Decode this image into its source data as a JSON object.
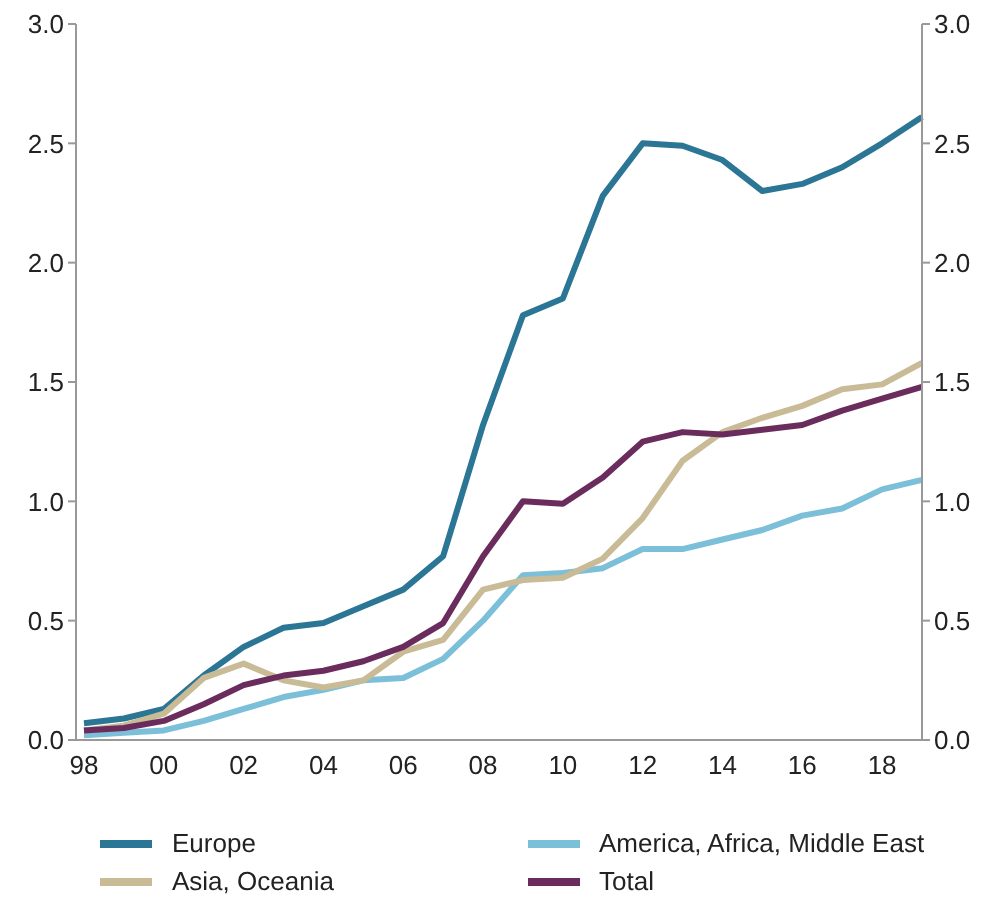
{
  "chart_data": {
    "type": "line",
    "categories": [
      "98",
      null,
      "00",
      null,
      "02",
      null,
      "04",
      null,
      "06",
      null,
      "08",
      null,
      "10",
      null,
      "12",
      null,
      "14",
      null,
      "16",
      null,
      "18",
      null
    ],
    "series": [
      {
        "name": "Europe",
        "color": "#2b7595",
        "values": [
          0.07,
          0.09,
          0.13,
          0.27,
          0.39,
          0.47,
          0.49,
          0.56,
          0.63,
          0.77,
          1.32,
          1.78,
          1.85,
          2.28,
          2.5,
          2.49,
          2.43,
          2.3,
          2.33,
          2.4,
          2.5,
          2.61
        ]
      },
      {
        "name": "America, Africa, Middle East",
        "color": "#7cbfd8",
        "values": [
          0.02,
          0.03,
          0.04,
          0.08,
          0.13,
          0.18,
          0.21,
          0.25,
          0.26,
          0.34,
          0.5,
          0.69,
          0.7,
          0.72,
          0.8,
          0.8,
          0.84,
          0.88,
          0.94,
          0.97,
          1.05,
          1.09
        ]
      },
      {
        "name": "Asia, Oceania",
        "color": "#c8bb96",
        "values": [
          0.04,
          0.06,
          0.11,
          0.26,
          0.32,
          0.25,
          0.22,
          0.25,
          0.37,
          0.42,
          0.63,
          0.67,
          0.68,
          0.76,
          0.93,
          1.17,
          1.29,
          1.35,
          1.4,
          1.47,
          1.49,
          1.58
        ]
      },
      {
        "name": "Total",
        "color": "#6a2c5c",
        "values": [
          0.04,
          0.05,
          0.08,
          0.15,
          0.23,
          0.27,
          0.29,
          0.33,
          0.39,
          0.49,
          0.77,
          1.0,
          0.99,
          1.1,
          1.25,
          1.29,
          1.28,
          1.3,
          1.32,
          1.38,
          1.43,
          1.48
        ]
      }
    ],
    "ylim": [
      0,
      3
    ],
    "yticks": [
      {
        "value": 0,
        "label": "0.0"
      },
      {
        "value": 0.5,
        "label": "0.5"
      },
      {
        "value": 1,
        "label": "1.0"
      },
      {
        "value": 1.5,
        "label": "1.5"
      },
      {
        "value": 2,
        "label": "2.0"
      },
      {
        "value": 2.5,
        "label": "2.5"
      },
      {
        "value": 3,
        "label": "3.0"
      }
    ],
    "y2lim": [
      0,
      3
    ],
    "y2ticks": [
      {
        "value": 0,
        "label": "0.0"
      },
      {
        "value": 0.5,
        "label": "0.5"
      },
      {
        "value": 1,
        "label": "1.0"
      },
      {
        "value": 1.5,
        "label": "1.5"
      },
      {
        "value": 2,
        "label": "2.0"
      },
      {
        "value": 2.5,
        "label": "2.5"
      },
      {
        "value": 3,
        "label": "3.0"
      }
    ],
    "grid": false,
    "legend": "bottom",
    "marker": "none",
    "line_style": "solid"
  }
}
